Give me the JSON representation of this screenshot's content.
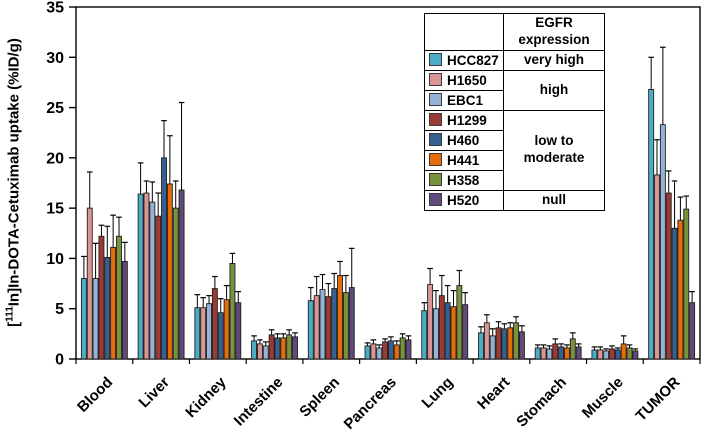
{
  "chart_data": {
    "type": "bar",
    "title": "",
    "ylabel_parts": {
      "open": "[",
      "sup": "111",
      "rest": "In]In-DOTA-Cetuximab uptake (%ID/g)"
    },
    "xlabel": "",
    "ylim": [
      0,
      35
    ],
    "ytick_step": 5,
    "grid": false,
    "legend_position": "inside top-right",
    "categories": [
      "Blood",
      "Liver",
      "Kidney",
      "Intestine",
      "Spleen",
      "Pancreas",
      "Lung",
      "Heart",
      "Stomach",
      "Muscle",
      "TUMOR"
    ],
    "series": [
      {
        "name": "HCC827",
        "egfr_expression": "very high",
        "color": "#4bacc6",
        "values": [
          8.0,
          16.4,
          5.1,
          1.8,
          5.8,
          1.3,
          4.8,
          2.6,
          1.1,
          0.9,
          26.8
        ],
        "errors": [
          2.2,
          3.1,
          1.3,
          0.5,
          1.3,
          0.3,
          0.8,
          0.6,
          0.3,
          0.3,
          3.2
        ]
      },
      {
        "name": "H1650",
        "egfr_expression": "high",
        "color": "#d99694",
        "values": [
          15.0,
          16.5,
          5.1,
          1.5,
          6.3,
          1.5,
          7.4,
          3.6,
          1.1,
          0.9,
          18.3
        ],
        "errors": [
          3.6,
          1.2,
          1.0,
          0.4,
          1.9,
          0.4,
          1.6,
          0.8,
          0.3,
          0.3,
          3.5
        ]
      },
      {
        "name": "EBC1",
        "egfr_expression": "high",
        "color": "#95b3d7",
        "values": [
          8.0,
          15.6,
          5.5,
          1.3,
          6.9,
          1.1,
          5.0,
          2.3,
          1.0,
          0.8,
          23.3
        ],
        "errors": [
          3.5,
          2.0,
          0.8,
          0.4,
          1.5,
          0.3,
          1.8,
          0.7,
          0.3,
          0.2,
          7.7
        ]
      },
      {
        "name": "H1299",
        "egfr_expression": "low to moderate",
        "color": "#9e3a36",
        "values": [
          12.2,
          14.2,
          7.0,
          2.4,
          6.2,
          1.7,
          6.3,
          3.1,
          1.5,
          1.0,
          16.5
        ],
        "errors": [
          1.1,
          2.3,
          1.2,
          0.5,
          1.3,
          0.3,
          2.0,
          0.6,
          0.5,
          0.3,
          2.2
        ]
      },
      {
        "name": "H460",
        "egfr_expression": "low to moderate",
        "color": "#376092",
        "values": [
          10.1,
          20.0,
          4.6,
          2.1,
          7.0,
          1.8,
          5.6,
          3.0,
          1.2,
          0.9,
          13.0
        ],
        "errors": [
          3.1,
          3.7,
          1.4,
          0.4,
          1.5,
          0.4,
          1.7,
          0.5,
          0.3,
          0.2,
          4.7
        ]
      },
      {
        "name": "H441",
        "egfr_expression": "low to moderate",
        "color": "#e66c09",
        "values": [
          11.1,
          17.4,
          5.9,
          2.1,
          8.3,
          1.4,
          5.2,
          3.1,
          1.1,
          1.5,
          13.8
        ],
        "errors": [
          3.2,
          4.8,
          1.4,
          0.4,
          1.4,
          0.4,
          1.6,
          0.5,
          0.3,
          0.8,
          2.3
        ]
      },
      {
        "name": "H358",
        "egfr_expression": "low to moderate",
        "color": "#77933c",
        "values": [
          12.2,
          15.0,
          9.5,
          2.4,
          6.6,
          2.1,
          7.3,
          3.6,
          2.0,
          1.1,
          14.9
        ],
        "errors": [
          1.9,
          2.7,
          1.0,
          0.5,
          1.7,
          0.4,
          1.5,
          0.6,
          0.6,
          0.3,
          1.3
        ]
      },
      {
        "name": "H520",
        "egfr_expression": "null",
        "color": "#604a7b",
        "values": [
          9.7,
          16.8,
          5.6,
          2.2,
          7.1,
          1.9,
          5.4,
          2.7,
          1.2,
          0.8,
          5.6
        ],
        "errors": [
          1.9,
          8.7,
          1.1,
          0.4,
          3.9,
          0.4,
          1.2,
          0.6,
          0.3,
          0.2,
          1.1
        ]
      }
    ],
    "legend": {
      "header": "EGFR expression",
      "groups": [
        {
          "label": "very high",
          "span": 1
        },
        {
          "label": "high",
          "span": 2
        },
        {
          "label": "low to moderate",
          "span": 4
        },
        {
          "label": "null",
          "span": 1
        }
      ]
    }
  }
}
